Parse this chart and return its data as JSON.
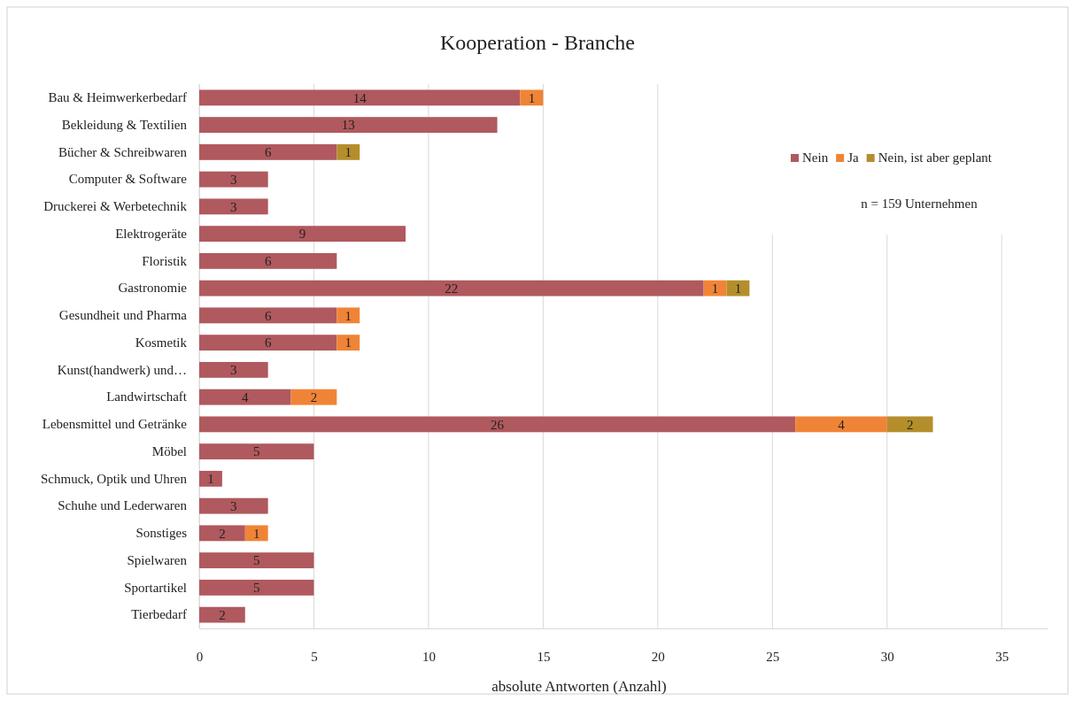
{
  "chart_data": {
    "type": "bar",
    "orientation": "horizontal",
    "stacked": true,
    "title": "Kooperation - Branche",
    "xlabel": "absolute Antworten (Anzahl)",
    "categories": [
      "Bau & Heimwerkerbedarf",
      "Bekleidung & Textilien",
      "Bücher & Schreibwaren",
      "Computer & Software",
      "Druckerei & Werbetechnik",
      "Elektrogeräte",
      "Floristik",
      "Gastronomie",
      "Gesundheit und Pharma",
      "Kosmetik",
      "Kunst(handwerk) und…",
      "Landwirtschaft",
      "Lebensmittel und Getränke",
      "Möbel",
      "Schmuck, Optik und Uhren",
      "Schuhe und Lederwaren",
      "Sonstiges",
      "Spielwaren",
      "Sportartikel",
      "Tierbedarf"
    ],
    "series": [
      {
        "name": "Nein",
        "color": "#b0595e",
        "values": [
          14,
          13,
          6,
          3,
          3,
          9,
          6,
          22,
          6,
          6,
          3,
          4,
          26,
          5,
          1,
          3,
          2,
          5,
          5,
          2
        ]
      },
      {
        "name": "Ja",
        "color": "#f08436",
        "values": [
          1,
          null,
          null,
          null,
          null,
          null,
          null,
          1,
          1,
          1,
          null,
          2,
          4,
          null,
          null,
          null,
          1,
          null,
          null,
          null
        ]
      },
      {
        "name": "Nein, ist aber geplant",
        "color": "#b58e2c",
        "values": [
          null,
          null,
          1,
          null,
          null,
          null,
          null,
          1,
          null,
          null,
          null,
          null,
          2,
          null,
          null,
          null,
          null,
          null,
          null,
          null
        ]
      }
    ],
    "xlim": [
      0,
      37
    ],
    "xticks": [
      0,
      5,
      10,
      15,
      20,
      25,
      30,
      35
    ],
    "grid": "x",
    "legend": "top right",
    "data_labels": true,
    "annotations": [
      "n = 159 Unternehmen"
    ]
  }
}
